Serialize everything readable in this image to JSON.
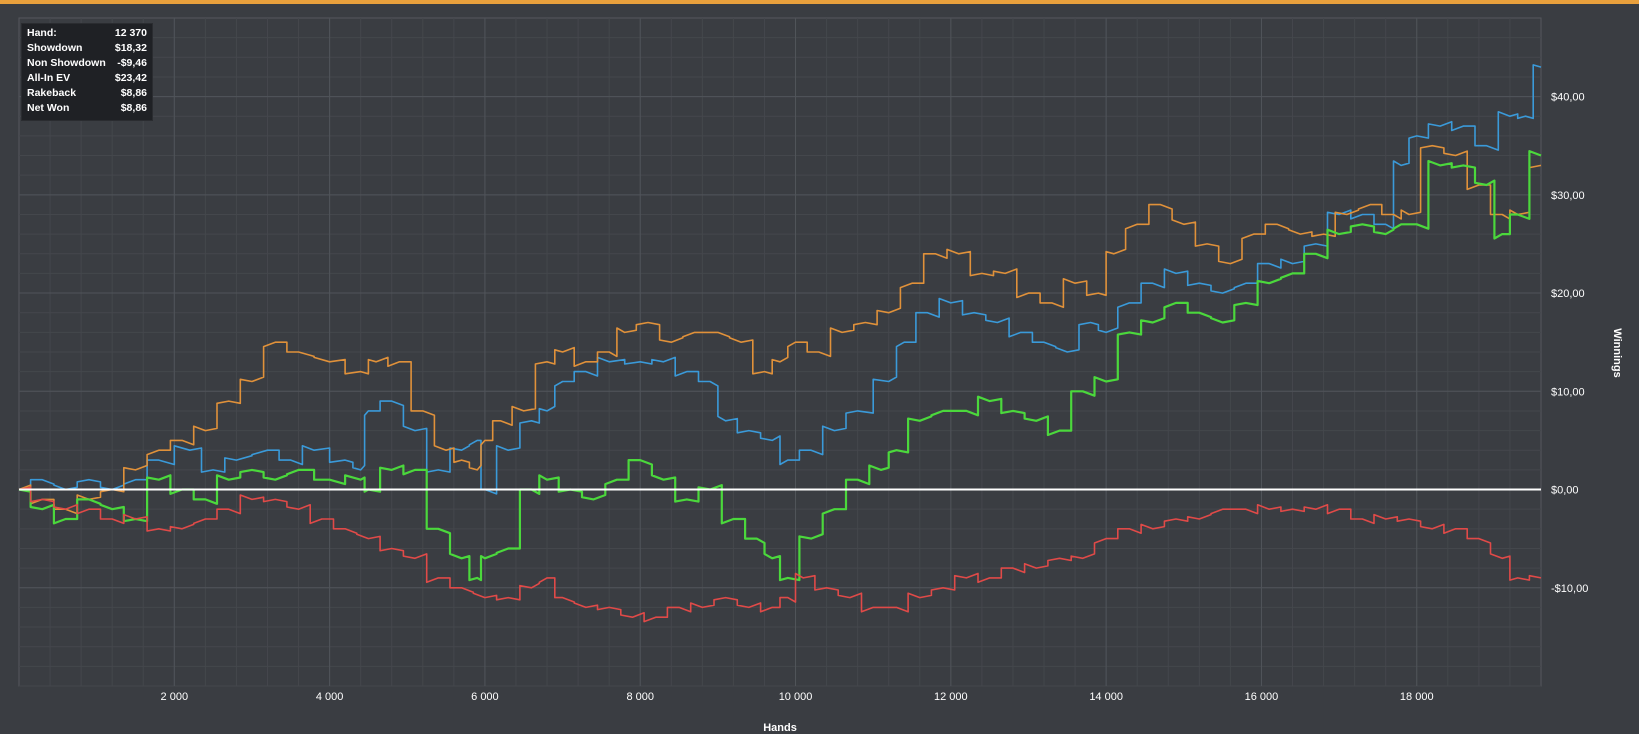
{
  "stats": {
    "rows": [
      {
        "label": "Hand:",
        "value": "12 370"
      },
      {
        "label": "Showdown",
        "value": "$18,32"
      },
      {
        "label": "Non Showdown",
        "value": "-$9,46"
      },
      {
        "label": "All-In EV",
        "value": "$23,42"
      },
      {
        "label": "Rakeback",
        "value": "$8,86"
      },
      {
        "label": "Net Won",
        "value": "$8,86"
      }
    ]
  },
  "colors": {
    "background": "#3a3d42",
    "grid": "#50545a",
    "grid_minor": "#44474c",
    "accent_bar": "#e9a03c",
    "zero_line": "#ffffff"
  },
  "chart_data": {
    "type": "line",
    "xlabel": "Hands",
    "ylabel": "Winnings",
    "xlim": [
      0,
      19600
    ],
    "ylim": [
      -20,
      48
    ],
    "x_ticks": [
      2000,
      4000,
      6000,
      8000,
      10000,
      12000,
      14000,
      16000,
      18000
    ],
    "x_tick_labels": [
      "2 000",
      "4 000",
      "6 000",
      "8 000",
      "10 000",
      "12 000",
      "14 000",
      "16 000",
      "18 000"
    ],
    "y_ticks": [
      -10,
      0,
      10,
      20,
      30,
      40
    ],
    "y_tick_labels": [
      "-$10,00",
      "$0,00",
      "$10,00",
      "$20,00",
      "$30,00",
      "$40,00"
    ],
    "grid": true,
    "series": [
      {
        "color": "#3a9ad9",
        "x": [
          0,
          300,
          600,
          900,
          1200,
          1500,
          1800,
          2200,
          2500,
          2800,
          3200,
          3500,
          3800,
          4200,
          4400,
          4500,
          4800,
          5100,
          5400,
          5700,
          5900,
          6000,
          6300,
          6600,
          6800,
          7000,
          7300,
          7600,
          8000,
          8300,
          8600,
          8900,
          9100,
          9400,
          9700,
          9900,
          10200,
          10500,
          10800,
          11200,
          11400,
          11700,
          12000,
          12300,
          12600,
          12900,
          13200,
          13500,
          13800,
          14000,
          14300,
          14600,
          14900,
          15200,
          15500,
          15800,
          16100,
          16400,
          16700,
          17000,
          17300,
          17600,
          17800,
          18000,
          18300,
          18600,
          18900,
          19200,
          19400,
          19600
        ],
        "values": [
          0,
          1,
          0,
          1,
          0,
          1,
          3,
          4,
          2,
          3,
          4,
          3,
          4,
          3,
          2,
          8,
          9,
          6,
          2,
          4,
          5,
          0,
          4,
          7,
          8,
          11,
          12,
          13,
          13,
          13,
          12,
          11,
          7,
          6,
          5,
          3,
          4,
          6,
          8,
          11,
          15,
          18,
          19,
          18,
          17,
          16,
          15,
          14,
          17,
          16,
          19,
          21,
          22,
          21,
          20,
          21,
          23,
          23,
          25,
          28,
          28,
          27,
          33,
          36,
          37,
          37,
          35,
          38,
          38,
          43
        ]
      },
      {
        "color": "#e0913a",
        "x": [
          0,
          300,
          600,
          900,
          1200,
          1500,
          1800,
          2100,
          2400,
          2700,
          3000,
          3300,
          3600,
          4000,
          4400,
          4600,
          4900,
          5200,
          5500,
          5700,
          5900,
          6000,
          6200,
          6500,
          6800,
          7000,
          7300,
          7600,
          7800,
          8100,
          8400,
          8700,
          9000,
          9300,
          9600,
          9800,
          10000,
          10300,
          10600,
          10900,
          11200,
          11500,
          11800,
          12100,
          12400,
          12700,
          13000,
          13300,
          13600,
          13900,
          14100,
          14400,
          14700,
          15000,
          15300,
          15600,
          15900,
          16200,
          16500,
          16800,
          17100,
          17400,
          17700,
          17900,
          18200,
          18500,
          18800,
          19100,
          19300,
          19600
        ],
        "values": [
          0,
          -1,
          -2,
          -1,
          0,
          2,
          4,
          5,
          6,
          9,
          11,
          15,
          14,
          13,
          12,
          13,
          13,
          8,
          4,
          3,
          2,
          5,
          7,
          8,
          13,
          14,
          13,
          14,
          16,
          17,
          15,
          16,
          16,
          15,
          12,
          13,
          15,
          14,
          16,
          17,
          18,
          21,
          24,
          24,
          22,
          22,
          20,
          19,
          21,
          20,
          24,
          27,
          29,
          27,
          25,
          23,
          26,
          27,
          26,
          26,
          28,
          29,
          28,
          28,
          35,
          34,
          31,
          28,
          28,
          33
        ]
      },
      {
        "color": "#4bd83c",
        "x": [
          0,
          300,
          600,
          900,
          1200,
          1500,
          1800,
          2100,
          2400,
          2700,
          3000,
          3300,
          3600,
          4000,
          4400,
          4500,
          4800,
          5100,
          5400,
          5700,
          5900,
          6000,
          6300,
          6600,
          6800,
          7100,
          7400,
          7700,
          8000,
          8300,
          8600,
          8900,
          9200,
          9500,
          9700,
          9900,
          10200,
          10500,
          10800,
          11100,
          11300,
          11600,
          11900,
          12200,
          12500,
          12800,
          13100,
          13400,
          13700,
          14000,
          14300,
          14600,
          14900,
          15200,
          15500,
          15800,
          16100,
          16400,
          16700,
          17000,
          17300,
          17600,
          17800,
          18000,
          18300,
          18600,
          18900,
          19100,
          19300,
          19600
        ],
        "values": [
          0,
          -2,
          -3,
          -1,
          -2,
          -3,
          1,
          0,
          -1,
          1,
          2,
          1,
          2,
          1,
          1,
          0,
          2,
          2,
          -4,
          -7,
          -9,
          -7,
          -6,
          0,
          1,
          0,
          -1,
          1,
          3,
          1,
          -1,
          0,
          -3,
          -5,
          -7,
          -9,
          -5,
          -2,
          1,
          2,
          4,
          7,
          8,
          8,
          9,
          8,
          7,
          6,
          10,
          11,
          16,
          17,
          19,
          18,
          17,
          19,
          21,
          22,
          24,
          26,
          27,
          26,
          27,
          27,
          33,
          33,
          31,
          26,
          28,
          34
        ]
      },
      {
        "color": "#e04a48",
        "x": [
          0,
          300,
          600,
          900,
          1200,
          1500,
          1800,
          2100,
          2400,
          2700,
          3000,
          3300,
          3600,
          3900,
          4200,
          4500,
          4800,
          5100,
          5400,
          5700,
          6000,
          6300,
          6600,
          6800,
          7000,
          7300,
          7600,
          7900,
          8200,
          8500,
          8800,
          9100,
          9400,
          9700,
          9900,
          10100,
          10400,
          10700,
          11000,
          11300,
          11600,
          11900,
          12200,
          12500,
          12800,
          13100,
          13400,
          13700,
          14000,
          14300,
          14600,
          14900,
          15200,
          15500,
          15800,
          16100,
          16400,
          16700,
          17000,
          17300,
          17600,
          17900,
          18200,
          18500,
          18800,
          19100,
          19300,
          19600
        ],
        "values": [
          0,
          -1,
          -2,
          -2,
          -3,
          -3,
          -4,
          -4,
          -3,
          -2,
          -1,
          -1,
          -2,
          -3,
          -4,
          -5,
          -6,
          -7,
          -9,
          -10,
          -11,
          -11,
          -10,
          -9,
          -11,
          -12,
          -12,
          -13,
          -13,
          -12,
          -12,
          -11,
          -12,
          -12,
          -11,
          -9,
          -10,
          -11,
          -12,
          -12,
          -11,
          -10,
          -9,
          -9,
          -8,
          -8,
          -7,
          -7,
          -5,
          -4,
          -4,
          -3,
          -3,
          -2,
          -2,
          -2,
          -2,
          -2,
          -2,
          -3,
          -3,
          -3,
          -4,
          -4,
          -5,
          -7,
          -9,
          -9
        ]
      }
    ]
  }
}
